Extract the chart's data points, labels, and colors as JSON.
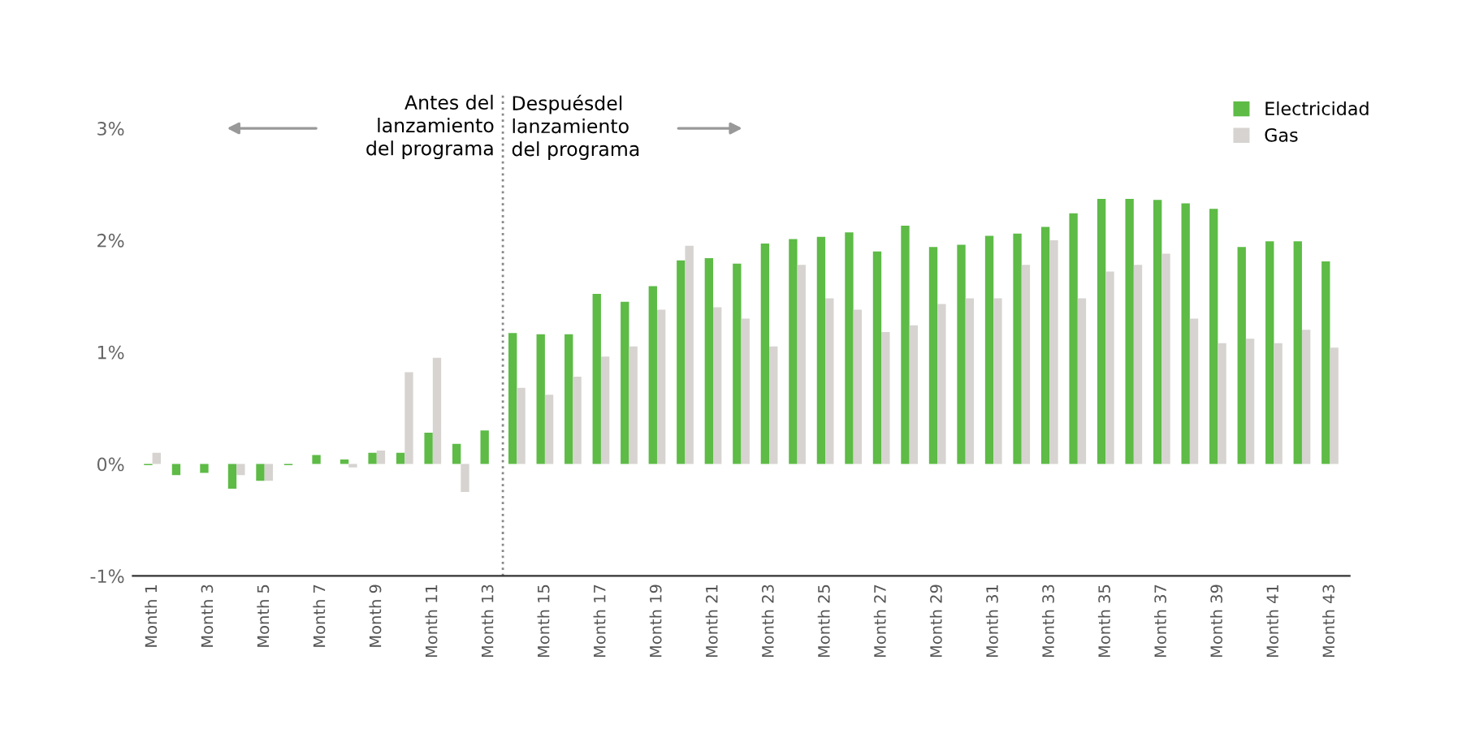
{
  "chart_data": {
    "type": "bar",
    "categories": [
      "Month 1",
      null,
      "Month 3",
      null,
      "Month 5",
      null,
      "Month 7",
      null,
      "Month 9",
      null,
      "Month 11",
      null,
      "Month 13",
      null,
      "Month 15",
      null,
      "Month 17",
      null,
      "Month 19",
      null,
      "Month 21",
      null,
      "Month 23",
      null,
      "Month 25",
      null,
      "Month 27",
      null,
      "Month 29",
      null,
      "Month 31",
      null,
      "Month 33",
      null,
      "Month 35",
      null,
      "Month 37",
      null,
      "Month 39",
      null,
      "Month 41",
      null,
      "Month 43"
    ],
    "series": [
      {
        "name": "Electricidad",
        "color": "#5dbb46",
        "values": [
          -0.01,
          -0.1,
          -0.08,
          -0.22,
          -0.15,
          -0.01,
          0.08,
          0.04,
          0.1,
          0.1,
          0.28,
          0.18,
          0.3,
          1.17,
          1.16,
          1.16,
          1.52,
          1.45,
          1.59,
          1.82,
          1.84,
          1.79,
          1.97,
          2.01,
          2.03,
          2.07,
          1.9,
          2.13,
          1.94,
          1.96,
          2.04,
          2.06,
          2.12,
          2.24,
          2.37,
          2.37,
          2.36,
          2.33,
          2.28,
          1.94,
          1.99,
          1.99,
          1.81
        ]
      },
      {
        "name": "Gas",
        "color": "#d6d3d0",
        "values": [
          0.1,
          0.0,
          null,
          -0.1,
          -0.15,
          0.0,
          0.0,
          -0.03,
          0.12,
          0.82,
          0.95,
          -0.25,
          0.0,
          0.68,
          0.62,
          0.78,
          0.96,
          1.05,
          1.38,
          1.95,
          1.4,
          1.3,
          1.05,
          1.78,
          1.48,
          1.38,
          1.18,
          1.24,
          1.43,
          1.48,
          1.48,
          1.78,
          2.0,
          1.48,
          1.72,
          1.78,
          1.88,
          1.3,
          1.08,
          1.12,
          1.08,
          1.2,
          1.04
        ]
      }
    ],
    "ylim": [
      -1,
      3.3
    ],
    "yticks": [
      {
        "value": -1,
        "label": "-1%"
      },
      {
        "value": 0,
        "label": "0%"
      },
      {
        "value": 1,
        "label": "1%"
      },
      {
        "value": 2,
        "label": "2%"
      },
      {
        "value": 3,
        "label": "3%"
      }
    ],
    "annotations": [
      "Antes del\nlanzamiento\ndel programa",
      "Despuésdel\nlanzamiento\ndel programa"
    ],
    "grid": false,
    "legend": "top right"
  }
}
